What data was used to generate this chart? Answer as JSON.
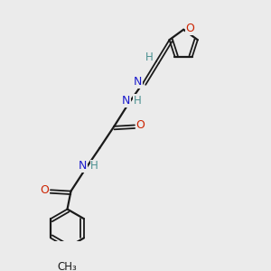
{
  "bg_color": "#ebebeb",
  "bond_color": "#1a1a1a",
  "N_color": "#4a9090",
  "O_color": "#cc2200",
  "N_blue_color": "#1a1acc",
  "figsize": [
    3.0,
    3.0
  ],
  "dpi": 100,
  "xlim": [
    0,
    10
  ],
  "ylim": [
    0,
    10
  ]
}
